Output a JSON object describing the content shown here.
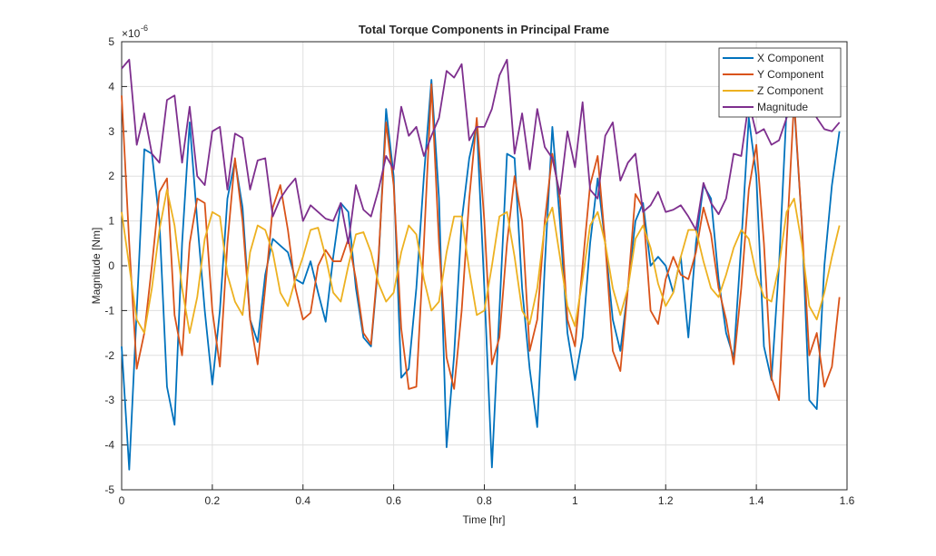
{
  "chart_data": {
    "type": "line",
    "title": "Total Torque Components in Principal Frame",
    "x_label": "Time [hr]",
    "y_label": "Magnitude [Nm]",
    "y_multiplier": {
      "base": "×10",
      "exponent": "-6"
    },
    "x": [
      0,
      0.0167,
      0.0333,
      0.05,
      0.0667,
      0.0833,
      0.1,
      0.1167,
      0.1333,
      0.15,
      0.1667,
      0.1833,
      0.2,
      0.2167,
      0.2333,
      0.25,
      0.2667,
      0.2833,
      0.3,
      0.3167,
      0.3333,
      0.35,
      0.3667,
      0.3833,
      0.4,
      0.4167,
      0.4333,
      0.45,
      0.4667,
      0.4833,
      0.5,
      0.5167,
      0.5333,
      0.55,
      0.5667,
      0.5833,
      0.6,
      0.6167,
      0.6333,
      0.65,
      0.6667,
      0.6833,
      0.7,
      0.7167,
      0.7333,
      0.75,
      0.7667,
      0.7833,
      0.8,
      0.8167,
      0.8333,
      0.85,
      0.8667,
      0.8833,
      0.9,
      0.9167,
      0.9333,
      0.95,
      0.9667,
      0.9833,
      1,
      1.0167,
      1.0333,
      1.05,
      1.0667,
      1.0833,
      1.1,
      1.1167,
      1.1333,
      1.15,
      1.1667,
      1.1833,
      1.2,
      1.2167,
      1.2333,
      1.25,
      1.2667,
      1.2833,
      1.3,
      1.3167,
      1.3333,
      1.35,
      1.3667,
      1.3833,
      1.4,
      1.4167,
      1.4333,
      1.45,
      1.4667,
      1.4833,
      1.5,
      1.5167,
      1.5333,
      1.55,
      1.5667,
      1.5833
    ],
    "series": [
      {
        "name": "X Component",
        "color": "#0072BD",
        "values": [
          -1.8,
          -4.55,
          -1.0,
          2.6,
          2.5,
          1.0,
          -2.7,
          -3.55,
          0.5,
          3.2,
          1.0,
          -1.0,
          -2.65,
          -1.0,
          1.5,
          2.35,
          1.3,
          -1.2,
          -1.7,
          -0.2,
          0.6,
          0.45,
          0.3,
          -0.3,
          -0.4,
          0.1,
          -0.6,
          -1.25,
          0.2,
          1.4,
          1.2,
          -0.5,
          -1.6,
          -1.8,
          0.1,
          3.5,
          2.0,
          -2.5,
          -2.3,
          -0.5,
          2.0,
          4.15,
          1.5,
          -4.05,
          -2.0,
          1.0,
          2.4,
          3.15,
          -0.5,
          -4.5,
          -1.0,
          2.5,
          2.4,
          -0.5,
          -2.3,
          -3.6,
          0.0,
          3.1,
          1.0,
          -1.5,
          -2.55,
          -1.6,
          0.5,
          1.95,
          0.5,
          -1.2,
          -1.9,
          -0.5,
          1.0,
          1.4,
          0.0,
          0.2,
          0.0,
          -0.6,
          0.2,
          -1.6,
          0.5,
          1.8,
          1.5,
          -0.3,
          -1.5,
          -2.05,
          0.5,
          3.3,
          2.0,
          -1.8,
          -2.55,
          0.0,
          3.5,
          3.6,
          1.0,
          -3.0,
          -3.2,
          0.0,
          1.8,
          3.0
        ]
      },
      {
        "name": "Y Component",
        "color": "#D95319",
        "values": [
          3.8,
          0.5,
          -2.3,
          -1.5,
          0.0,
          1.65,
          1.95,
          -1.1,
          -2.0,
          0.5,
          1.5,
          1.4,
          -1.0,
          -2.25,
          0.5,
          2.4,
          1.0,
          -1.2,
          -2.2,
          -0.5,
          1.3,
          1.8,
          0.8,
          -0.5,
          -1.2,
          -1.05,
          0.0,
          0.35,
          0.1,
          0.1,
          0.6,
          -0.3,
          -1.5,
          -1.75,
          0.2,
          3.2,
          1.8,
          -1.4,
          -2.75,
          -2.7,
          0.5,
          4.05,
          0.5,
          -2.05,
          -2.75,
          -1.0,
          1.5,
          3.3,
          1.0,
          -2.2,
          -1.6,
          0.5,
          2.0,
          1.0,
          -1.9,
          -1.2,
          1.0,
          2.5,
          1.5,
          -1.2,
          -1.8,
          0.0,
          1.8,
          2.45,
          0.5,
          -1.9,
          -2.35,
          -0.5,
          1.6,
          1.3,
          -1.0,
          -1.3,
          -0.3,
          0.2,
          -0.2,
          -0.3,
          0.3,
          1.3,
          0.7,
          -0.5,
          -1.2,
          -2.2,
          -0.5,
          1.7,
          2.7,
          0.5,
          -2.5,
          -3.0,
          0.5,
          3.7,
          1.0,
          -2.0,
          -1.5,
          -2.7,
          -2.25,
          -0.7
        ]
      },
      {
        "name": "Z Component",
        "color": "#EDB120",
        "values": [
          1.2,
          0.0,
          -1.2,
          -1.5,
          -0.5,
          0.8,
          1.7,
          0.9,
          -0.5,
          -1.5,
          -0.7,
          0.6,
          1.2,
          1.1,
          -0.2,
          -0.8,
          -1.1,
          0.3,
          0.9,
          0.8,
          0.3,
          -0.6,
          -0.9,
          -0.3,
          0.2,
          0.8,
          0.85,
          0.2,
          -0.6,
          -0.8,
          0.0,
          0.7,
          0.75,
          0.3,
          -0.4,
          -0.8,
          -0.6,
          0.3,
          0.9,
          0.7,
          -0.3,
          -1.0,
          -0.8,
          0.3,
          1.1,
          1.1,
          -0.1,
          -1.1,
          -1.0,
          0.0,
          1.1,
          1.2,
          0.2,
          -1.0,
          -1.3,
          -0.5,
          0.9,
          1.3,
          0.2,
          -0.9,
          -1.35,
          -0.3,
          0.9,
          1.2,
          0.5,
          -0.5,
          -1.1,
          -0.5,
          0.6,
          0.9,
          0.4,
          -0.4,
          -0.9,
          -0.6,
          0.2,
          0.8,
          0.8,
          0.1,
          -0.5,
          -0.7,
          -0.2,
          0.4,
          0.8,
          0.6,
          -0.2,
          -0.7,
          -0.8,
          0.0,
          1.2,
          1.5,
          0.5,
          -0.9,
          -1.2,
          -0.6,
          0.2,
          0.9
        ]
      },
      {
        "name": "Magnitude",
        "color": "#7E2F8E",
        "values": [
          4.4,
          4.6,
          2.7,
          3.4,
          2.5,
          2.3,
          3.7,
          3.8,
          2.3,
          3.55,
          2.0,
          1.8,
          3.0,
          3.1,
          1.7,
          2.95,
          2.85,
          1.7,
          2.35,
          2.4,
          1.1,
          1.5,
          1.75,
          1.95,
          1.0,
          1.35,
          1.2,
          1.05,
          1.0,
          1.4,
          0.5,
          1.8,
          1.25,
          1.1,
          1.7,
          2.45,
          2.15,
          3.55,
          2.9,
          3.1,
          2.45,
          2.9,
          3.3,
          4.35,
          4.2,
          4.5,
          2.8,
          3.1,
          3.1,
          3.5,
          4.25,
          4.6,
          2.5,
          3.4,
          2.15,
          3.5,
          2.65,
          2.4,
          1.6,
          3.0,
          2.2,
          3.65,
          1.7,
          1.5,
          2.9,
          3.2,
          1.9,
          2.3,
          2.5,
          1.2,
          1.35,
          1.65,
          1.2,
          1.25,
          1.35,
          1.1,
          0.8,
          1.85,
          1.4,
          1.15,
          1.5,
          2.5,
          2.45,
          3.65,
          2.95,
          3.05,
          2.7,
          2.8,
          3.3,
          3.75,
          3.4,
          3.6,
          3.3,
          3.05,
          3.0,
          3.2
        ]
      }
    ],
    "xlim": [
      0,
      1.6
    ],
    "xticks": [
      0,
      0.2,
      0.4,
      0.6,
      0.8,
      1,
      1.2,
      1.4,
      1.6
    ],
    "ylim": [
      -5,
      5
    ],
    "yticks": [
      -5,
      -4,
      -3,
      -2,
      -1,
      0,
      1,
      2,
      3,
      4,
      5
    ],
    "grid": true,
    "legend": "top-right"
  }
}
